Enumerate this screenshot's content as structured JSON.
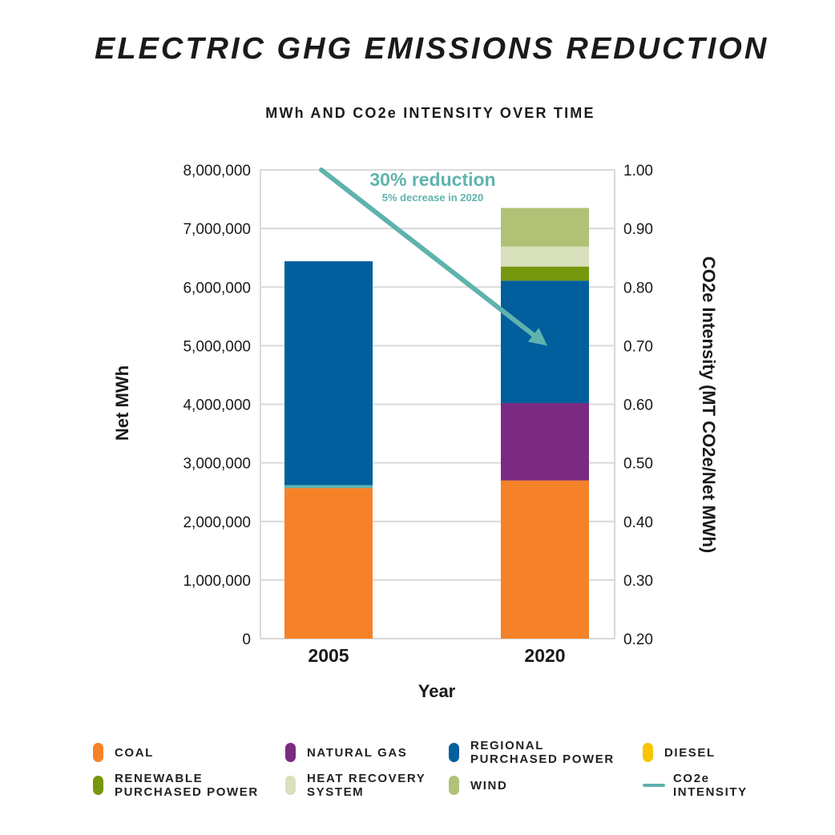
{
  "title": "ELECTRIC GHG EMISSIONS REDUCTION",
  "subtitle": "MWh AND CO2e INTENSITY OVER TIME",
  "chart_data": {
    "type": "bar",
    "stacked": true,
    "categories": [
      "2005",
      "2020"
    ],
    "xlabel": "Year",
    "ylabel": "Net MWh",
    "ylabel_right": "CO2e Intensity (MT CO2e/Net MWh)",
    "ylim": [
      0,
      8000000
    ],
    "ylim_right": [
      0.2,
      1.0
    ],
    "yticks": [
      "0",
      "1,000,000",
      "2,000,000",
      "3,000,000",
      "4,000,000",
      "5,000,000",
      "6,000,000",
      "7,000,000",
      "8,000,000"
    ],
    "yticks_right": [
      "0.20",
      "0.30",
      "0.40",
      "0.50",
      "0.60",
      "0.70",
      "0.80",
      "0.90",
      "1.00"
    ],
    "grid": true,
    "series": [
      {
        "name": "COAL",
        "color": "#f58229",
        "values": [
          2570000,
          2700000
        ]
      },
      {
        "name": "NATURAL GAS",
        "color": "#7b2a82",
        "values": [
          0,
          1320000
        ]
      },
      {
        "name": "RENEWABLE PURCHASED POWER",
        "color": "#5fb3ad",
        "values": [
          50000,
          0
        ]
      },
      {
        "name": "REGIONAL PURCHASED POWER",
        "color": "#005f9c",
        "values": [
          3820000,
          2090000
        ]
      },
      {
        "name": "RENEWABLE PURCHASED POWER",
        "color": "#76980f",
        "values": [
          0,
          240000
        ]
      },
      {
        "name": "HEAT RECOVERY SYSTEM",
        "color": "#d8e0bc",
        "values": [
          0,
          340000
        ]
      },
      {
        "name": "WIND",
        "color": "#b1c277",
        "values": [
          0,
          660000
        ]
      }
    ],
    "intensity": {
      "name": "CO2e INTENSITY",
      "color": "#5fb3ad",
      "values": [
        1.0,
        0.7
      ]
    },
    "annotations": [
      {
        "text": "30% reduction",
        "color": "#5fb3ad"
      },
      {
        "text": "5% decrease in 2020",
        "color": "#5fb3ad"
      }
    ]
  },
  "legend": [
    {
      "label": "COAL",
      "color": "#f58229",
      "kind": "swatch"
    },
    {
      "label": "NATURAL GAS",
      "color": "#7b2a82",
      "kind": "swatch"
    },
    {
      "label": "REGIONAL\nPURCHASED POWER",
      "color": "#005f9c",
      "kind": "swatch"
    },
    {
      "label": "DIESEL",
      "color": "#f7c600",
      "kind": "swatch"
    },
    {
      "label": "RENEWABLE\nPURCHASED POWER",
      "color": "#76980f",
      "kind": "swatch"
    },
    {
      "label": "HEAT RECOVERY\nSYSTEM",
      "color": "#d8e0bc",
      "kind": "swatch"
    },
    {
      "label": "WIND",
      "color": "#b1c277",
      "kind": "swatch"
    },
    {
      "label": "CO2e\nINTENSITY",
      "color": "#5fb3ad",
      "kind": "line"
    }
  ]
}
